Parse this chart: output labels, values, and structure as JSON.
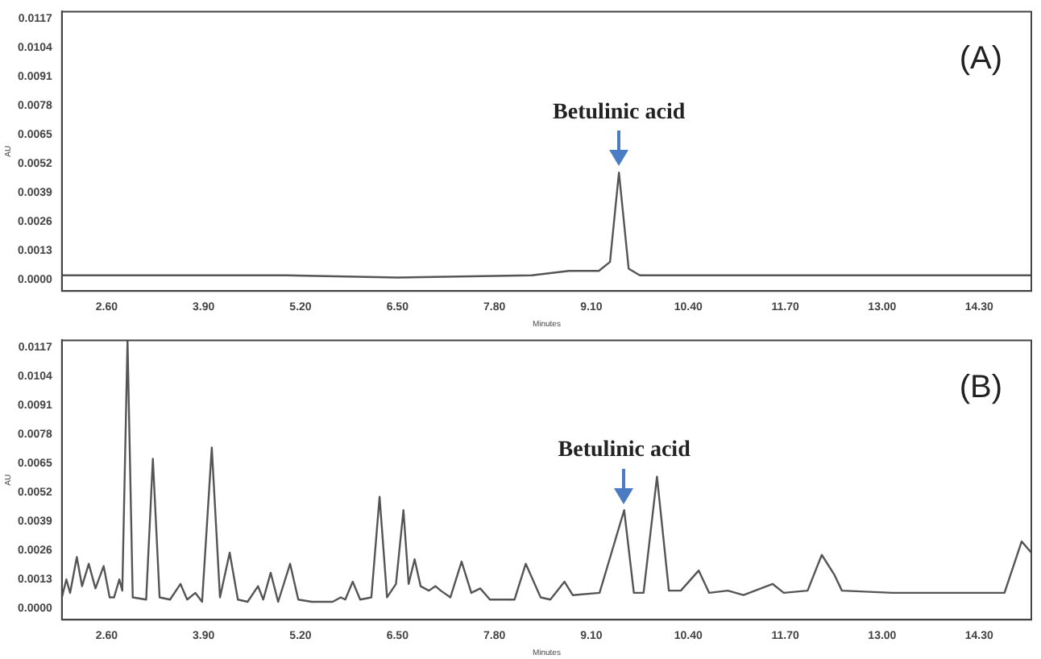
{
  "chart_data": [
    {
      "type": "line",
      "xlabel": "Minutes",
      "ylabel": "AU",
      "annotations": [
        "(A)",
        {
          "text": "Betulinic acid",
          "x": 9.47,
          "y": 0.0048
        }
      ],
      "series": [
        {
          "color": "#555555",
          "x": [
            2.0,
            5.0,
            6.5,
            8.3,
            8.8,
            9.2,
            9.35,
            9.47,
            9.6,
            9.75,
            12.0,
            15.0
          ],
          "values": [
            0.0002,
            0.0002,
            0.0001,
            0.0002,
            0.0004,
            0.0004,
            0.0008,
            0.0048,
            0.0005,
            0.0002,
            0.0002,
            0.0002
          ]
        }
      ],
      "xlim": [
        2.0,
        15.0
      ],
      "ylim": [
        -0.0005,
        0.012
      ],
      "xticks": [
        {
          "value": 2.6,
          "label": "2.60"
        },
        {
          "value": 3.9,
          "label": "3.90"
        },
        {
          "value": 5.2,
          "label": "5.20"
        },
        {
          "value": 6.5,
          "label": "6.50"
        },
        {
          "value": 7.8,
          "label": "7.80"
        },
        {
          "value": 9.1,
          "label": "9.10"
        },
        {
          "value": 10.4,
          "label": "10.40"
        },
        {
          "value": 11.7,
          "label": "11.70"
        },
        {
          "value": 13.0,
          "label": "13.00"
        },
        {
          "value": 14.3,
          "label": "14.30"
        }
      ],
      "yticks": [
        {
          "value": 0,
          "label": "0.0000"
        },
        0.0013,
        0.0026,
        0.0039,
        0.0052,
        0.0065,
        0.0078,
        0.0091,
        0.0104,
        0.0117
      ],
      "grid": false,
      "legend": false,
      "marker": "none",
      "line_style": "solid"
    },
    {
      "type": "line",
      "xlabel": "Minutes",
      "ylabel": "AU",
      "annotations": [
        "(B)",
        {
          "text": "Betulinic acid",
          "x": 9.54,
          "y": 0.0044
        }
      ],
      "series": [
        {
          "color": "#555555",
          "x": [
            2.0,
            2.06,
            2.11,
            2.2,
            2.27,
            2.36,
            2.45,
            2.56,
            2.64,
            2.7,
            2.77,
            2.81,
            2.88,
            2.95,
            3.13,
            3.22,
            3.31,
            3.45,
            3.59,
            3.68,
            3.79,
            3.88,
            4.01,
            4.12,
            4.25,
            4.36,
            4.49,
            4.63,
            4.7,
            4.8,
            4.9,
            5.06,
            5.17,
            5.35,
            5.63,
            5.74,
            5.8,
            5.9,
            6.0,
            6.15,
            6.26,
            6.36,
            6.48,
            6.58,
            6.65,
            6.73,
            6.81,
            6.92,
            7.01,
            7.08,
            7.21,
            7.36,
            7.49,
            7.61,
            7.74,
            8.07,
            8.22,
            8.42,
            8.55,
            8.74,
            8.85,
            9.21,
            9.54,
            9.67,
            9.8,
            9.98,
            10.14,
            10.3,
            10.54,
            10.68,
            10.93,
            11.14,
            11.53,
            11.68,
            12.0,
            12.19,
            12.36,
            12.46,
            13.14,
            14.64,
            14.87,
            15.0
          ],
          "values": [
            0.0005,
            0.0013,
            0.0007,
            0.0023,
            0.001,
            0.002,
            0.0009,
            0.0019,
            0.0005,
            0.0005,
            0.0013,
            0.0008,
            0.012,
            0.0005,
            0.0004,
            0.0067,
            0.0005,
            0.0004,
            0.0011,
            0.0004,
            0.0007,
            0.0003,
            0.0072,
            0.0005,
            0.0025,
            0.0004,
            0.0003,
            0.001,
            0.0004,
            0.0016,
            0.0003,
            0.002,
            0.0004,
            0.0003,
            0.0003,
            0.0005,
            0.0004,
            0.0012,
            0.0004,
            0.0005,
            0.005,
            0.0005,
            0.0011,
            0.0044,
            0.0011,
            0.0022,
            0.001,
            0.0008,
            0.001,
            0.0008,
            0.0005,
            0.0021,
            0.0007,
            0.0009,
            0.0004,
            0.0004,
            0.002,
            0.0005,
            0.0004,
            0.0012,
            0.0006,
            0.0007,
            0.0044,
            0.0007,
            0.0007,
            0.0059,
            0.0008,
            0.0008,
            0.0017,
            0.0007,
            0.0008,
            0.0006,
            0.0011,
            0.0007,
            0.0008,
            0.0024,
            0.0015,
            0.0008,
            0.0007,
            0.0007,
            0.003,
            0.0025
          ]
        }
      ],
      "xlim": [
        2.0,
        15.0
      ],
      "ylim": [
        -0.0005,
        0.012
      ],
      "xticks": [
        {
          "value": 2.6,
          "label": "2.60"
        },
        {
          "value": 3.9,
          "label": "3.90"
        },
        {
          "value": 5.2,
          "label": "5.20"
        },
        {
          "value": 6.5,
          "label": "6.50"
        },
        {
          "value": 7.8,
          "label": "7.80"
        },
        {
          "value": 9.1,
          "label": "9.10"
        },
        {
          "value": 10.4,
          "label": "10.40"
        },
        {
          "value": 11.7,
          "label": "11.70"
        },
        {
          "value": 13.0,
          "label": "13.00"
        },
        {
          "value": 14.3,
          "label": "14.30"
        }
      ],
      "yticks": [
        {
          "value": 0,
          "label": "0.0000"
        },
        0.0013,
        0.0026,
        0.0039,
        0.0052,
        0.0065,
        0.0078,
        0.0091,
        0.0104,
        0.0117
      ],
      "grid": false,
      "legend": false,
      "marker": "none",
      "line_style": "solid"
    }
  ]
}
